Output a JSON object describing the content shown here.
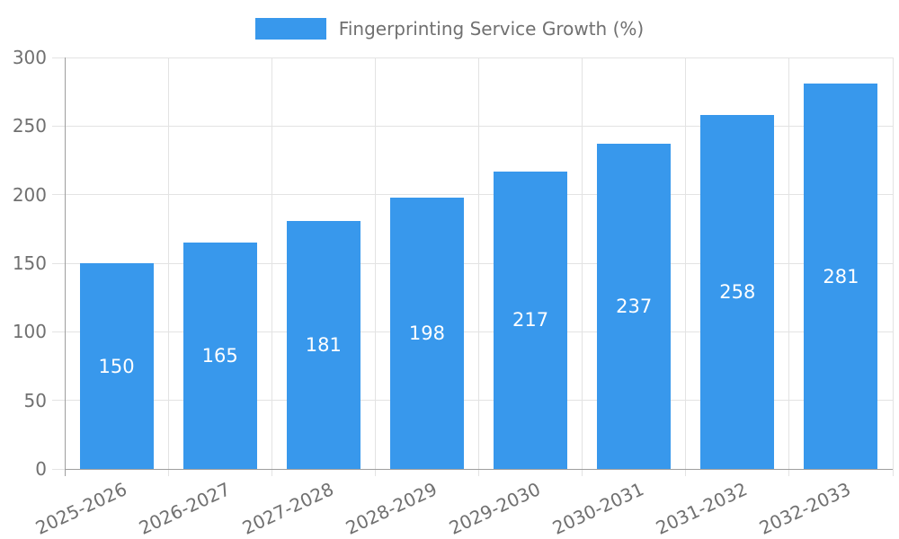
{
  "chart_data": {
    "type": "bar",
    "title": "",
    "legend_label": "Fingerprinting Service Growth (%)",
    "legend_position": "top",
    "categories": [
      "2025-2026",
      "2026-2027",
      "2027-2028",
      "2028-2029",
      "2029-2030",
      "2030-2031",
      "2031-2032",
      "2032-2033"
    ],
    "values": [
      150,
      165,
      181,
      198,
      217,
      237,
      258,
      281
    ],
    "xlabel": "",
    "ylabel": "",
    "ylim": [
      0,
      300
    ],
    "yticks": [
      0,
      50,
      100,
      150,
      200,
      250,
      300
    ],
    "grid": true,
    "value_label_position": "inside-center",
    "x_tick_rotation_deg": -25,
    "colors": {
      "bar": "#3898ec",
      "grid": "#e3e3e3",
      "axis": "#9e9e9e",
      "tick_text": "#707070",
      "value_text": "#ffffff",
      "background": "#ffffff"
    }
  }
}
